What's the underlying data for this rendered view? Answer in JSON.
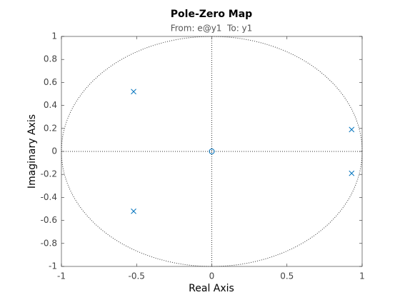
{
  "chart_data": {
    "type": "scatter",
    "title": "Pole-Zero Map",
    "subtitle": "From: e@y1  To: y1",
    "x_label": "Real Axis",
    "y_label": "Imaginary Axis",
    "series": [
      {
        "marker": "x",
        "color": "#0072bd",
        "x": [
          -0.52,
          -0.52,
          0.93,
          0.93
        ],
        "values": [
          0.52,
          -0.52,
          0.19,
          -0.19
        ]
      },
      {
        "marker": "o",
        "color": "#0072bd",
        "x": [
          0
        ],
        "values": [
          0
        ]
      }
    ],
    "xlim": [
      -1,
      1
    ],
    "ylim": [
      -1,
      1
    ],
    "xticks": [
      -1,
      -0.5,
      0,
      0.5,
      1
    ],
    "yticks": [
      -1,
      -0.8,
      -0.6,
      -0.4,
      -0.2,
      0,
      0.2,
      0.4,
      0.6,
      0.8,
      1
    ],
    "unit_circle": true,
    "axis_lines": true
  }
}
